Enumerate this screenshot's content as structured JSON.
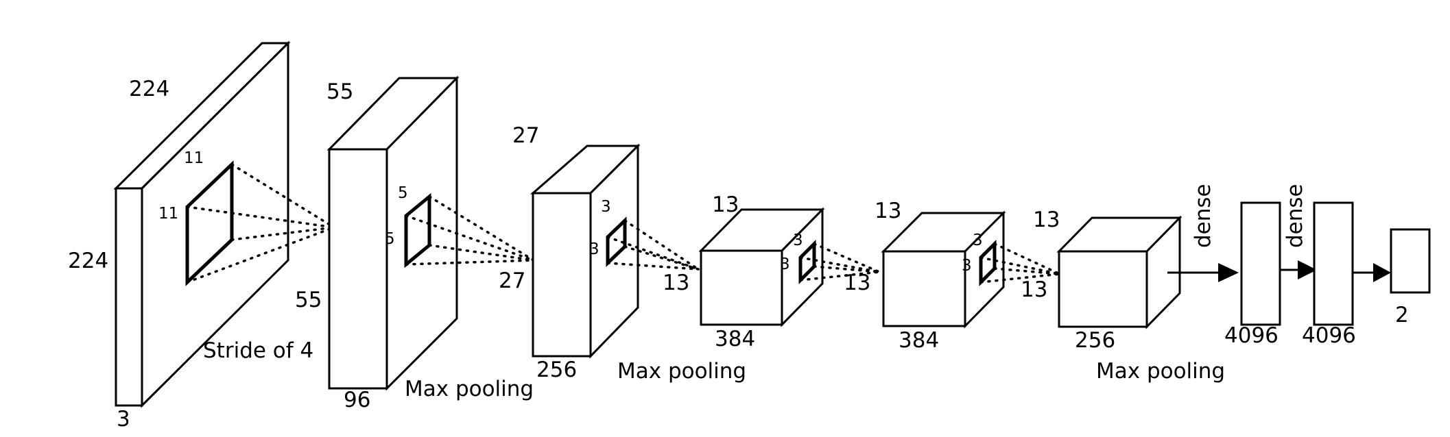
{
  "input_layer": {
    "width_label": "224",
    "height_label": "224",
    "depth_label": "3",
    "kernel_w_label": "11",
    "kernel_h_label": "11",
    "stride_label": "Stride of 4"
  },
  "conv1_layer": {
    "width_label": "55",
    "height_label": "55",
    "depth_label": "96",
    "kernel_w_label": "5",
    "kernel_h_label": "5",
    "pool_label": "Max pooling"
  },
  "conv2_layer": {
    "width_label": "27",
    "height_label": "27",
    "depth_label": "256",
    "kernel_w_label": "3",
    "kernel_h_label": "3",
    "pool_label": "Max pooling"
  },
  "conv3_layer": {
    "width_label": "13",
    "height_label": "13",
    "depth_label": "384",
    "kernel_w_label": "3",
    "kernel_h_label": "3"
  },
  "conv4_layer": {
    "width_label": "13",
    "height_label": "13",
    "depth_label": "384",
    "kernel_w_label": "3",
    "kernel_h_label": "3"
  },
  "conv5_layer": {
    "width_label": "13",
    "height_label": "13",
    "depth_label": "256",
    "pool_label": "Max pooling"
  },
  "dense1": {
    "arrow_label": "dense",
    "size_label": "4096"
  },
  "dense2": {
    "arrow_label": "dense",
    "size_label": "4096"
  },
  "output": {
    "size_label": "2"
  }
}
